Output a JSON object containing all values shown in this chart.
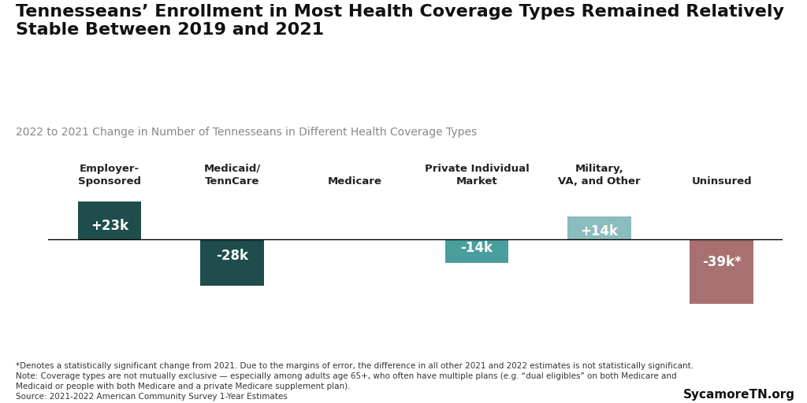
{
  "title": "Tennesseans’ Enrollment in Most Health Coverage Types Remained Relatively\nStable Between 2019 and 2021",
  "subtitle": "2022 to 2021 Change in Number of Tennesseans in Different Health Coverage Types",
  "categories": [
    "Employer-\nSponsored",
    "Medicaid/\nTennCare",
    "Medicare",
    "Private Individual\nMarket",
    "Military,\nVA, and Other",
    "Uninsured"
  ],
  "values": [
    23,
    -28,
    0,
    -14,
    14,
    -39
  ],
  "labels": [
    "+23k",
    "-28k",
    "",
    "-14k",
    "+14k",
    "-39k*"
  ],
  "bar_colors": [
    "#1e4d4b",
    "#1e4d4b",
    "#aaaaaa",
    "#4a9e9e",
    "#8bbcbf",
    "#a87070"
  ],
  "label_colors": [
    "#ffffff",
    "#ffffff",
    "#000000",
    "#ffffff",
    "#ffffff",
    "#ffffff"
  ],
  "ylim": [
    -50,
    30
  ],
  "footnote": "*Denotes a statistically significant change from 2021. Due to the margins of error, the difference in all other 2021 and 2022 estimates is not statistically significant.\nNote: Coverage types are not mutually exclusive — especially among adults age 65+, who often have multiple plans (e.g. “dual eligibles” on both Medicare and\nMedicaid or people with both Medicare and a private Medicare supplement plan).\nSource: 2021-2022 American Community Survey 1-Year Estimates",
  "branding": "SycamoreTN.org",
  "background_color": "#ffffff",
  "title_fontsize": 16,
  "subtitle_fontsize": 10,
  "category_fontsize": 9.5,
  "label_fontsize": 12,
  "footnote_fontsize": 7.5,
  "branding_fontsize": 11
}
